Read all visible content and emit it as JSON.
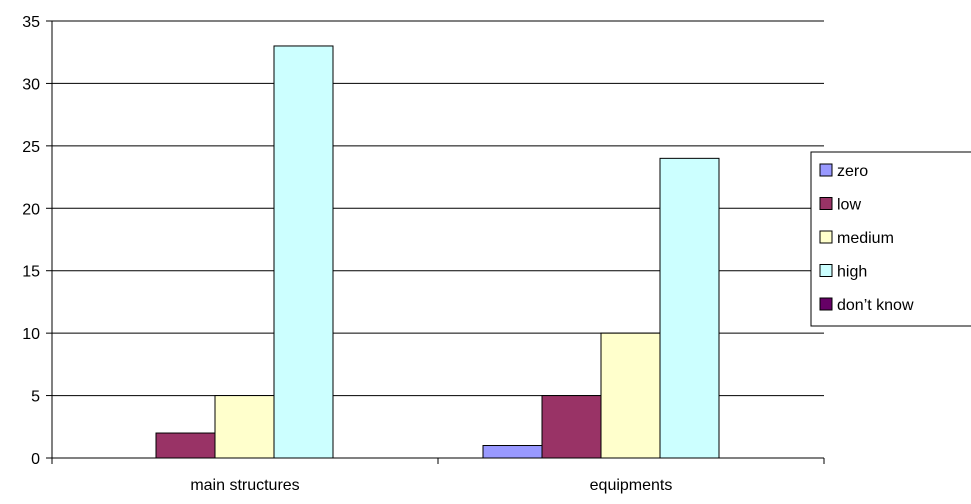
{
  "chart_data": {
    "type": "bar",
    "categories": [
      "main structures",
      "equipments"
    ],
    "series": [
      {
        "name": "zero",
        "color": "#9999FF",
        "values": [
          0,
          1
        ]
      },
      {
        "name": "low",
        "color": "#993366",
        "values": [
          2,
          5
        ]
      },
      {
        "name": "medium",
        "color": "#FFFFCC",
        "values": [
          5,
          10
        ]
      },
      {
        "name": "high",
        "color": "#CCFFFF",
        "values": [
          33,
          24
        ]
      },
      {
        "name": "don’t know",
        "color": "#660066",
        "values": [
          0,
          0
        ]
      }
    ],
    "ylim": [
      0,
      35
    ],
    "yticks": [
      "0",
      "5",
      "10",
      "15",
      "20",
      "25",
      "30",
      "35"
    ],
    "grid": true,
    "legend_position": "right"
  }
}
